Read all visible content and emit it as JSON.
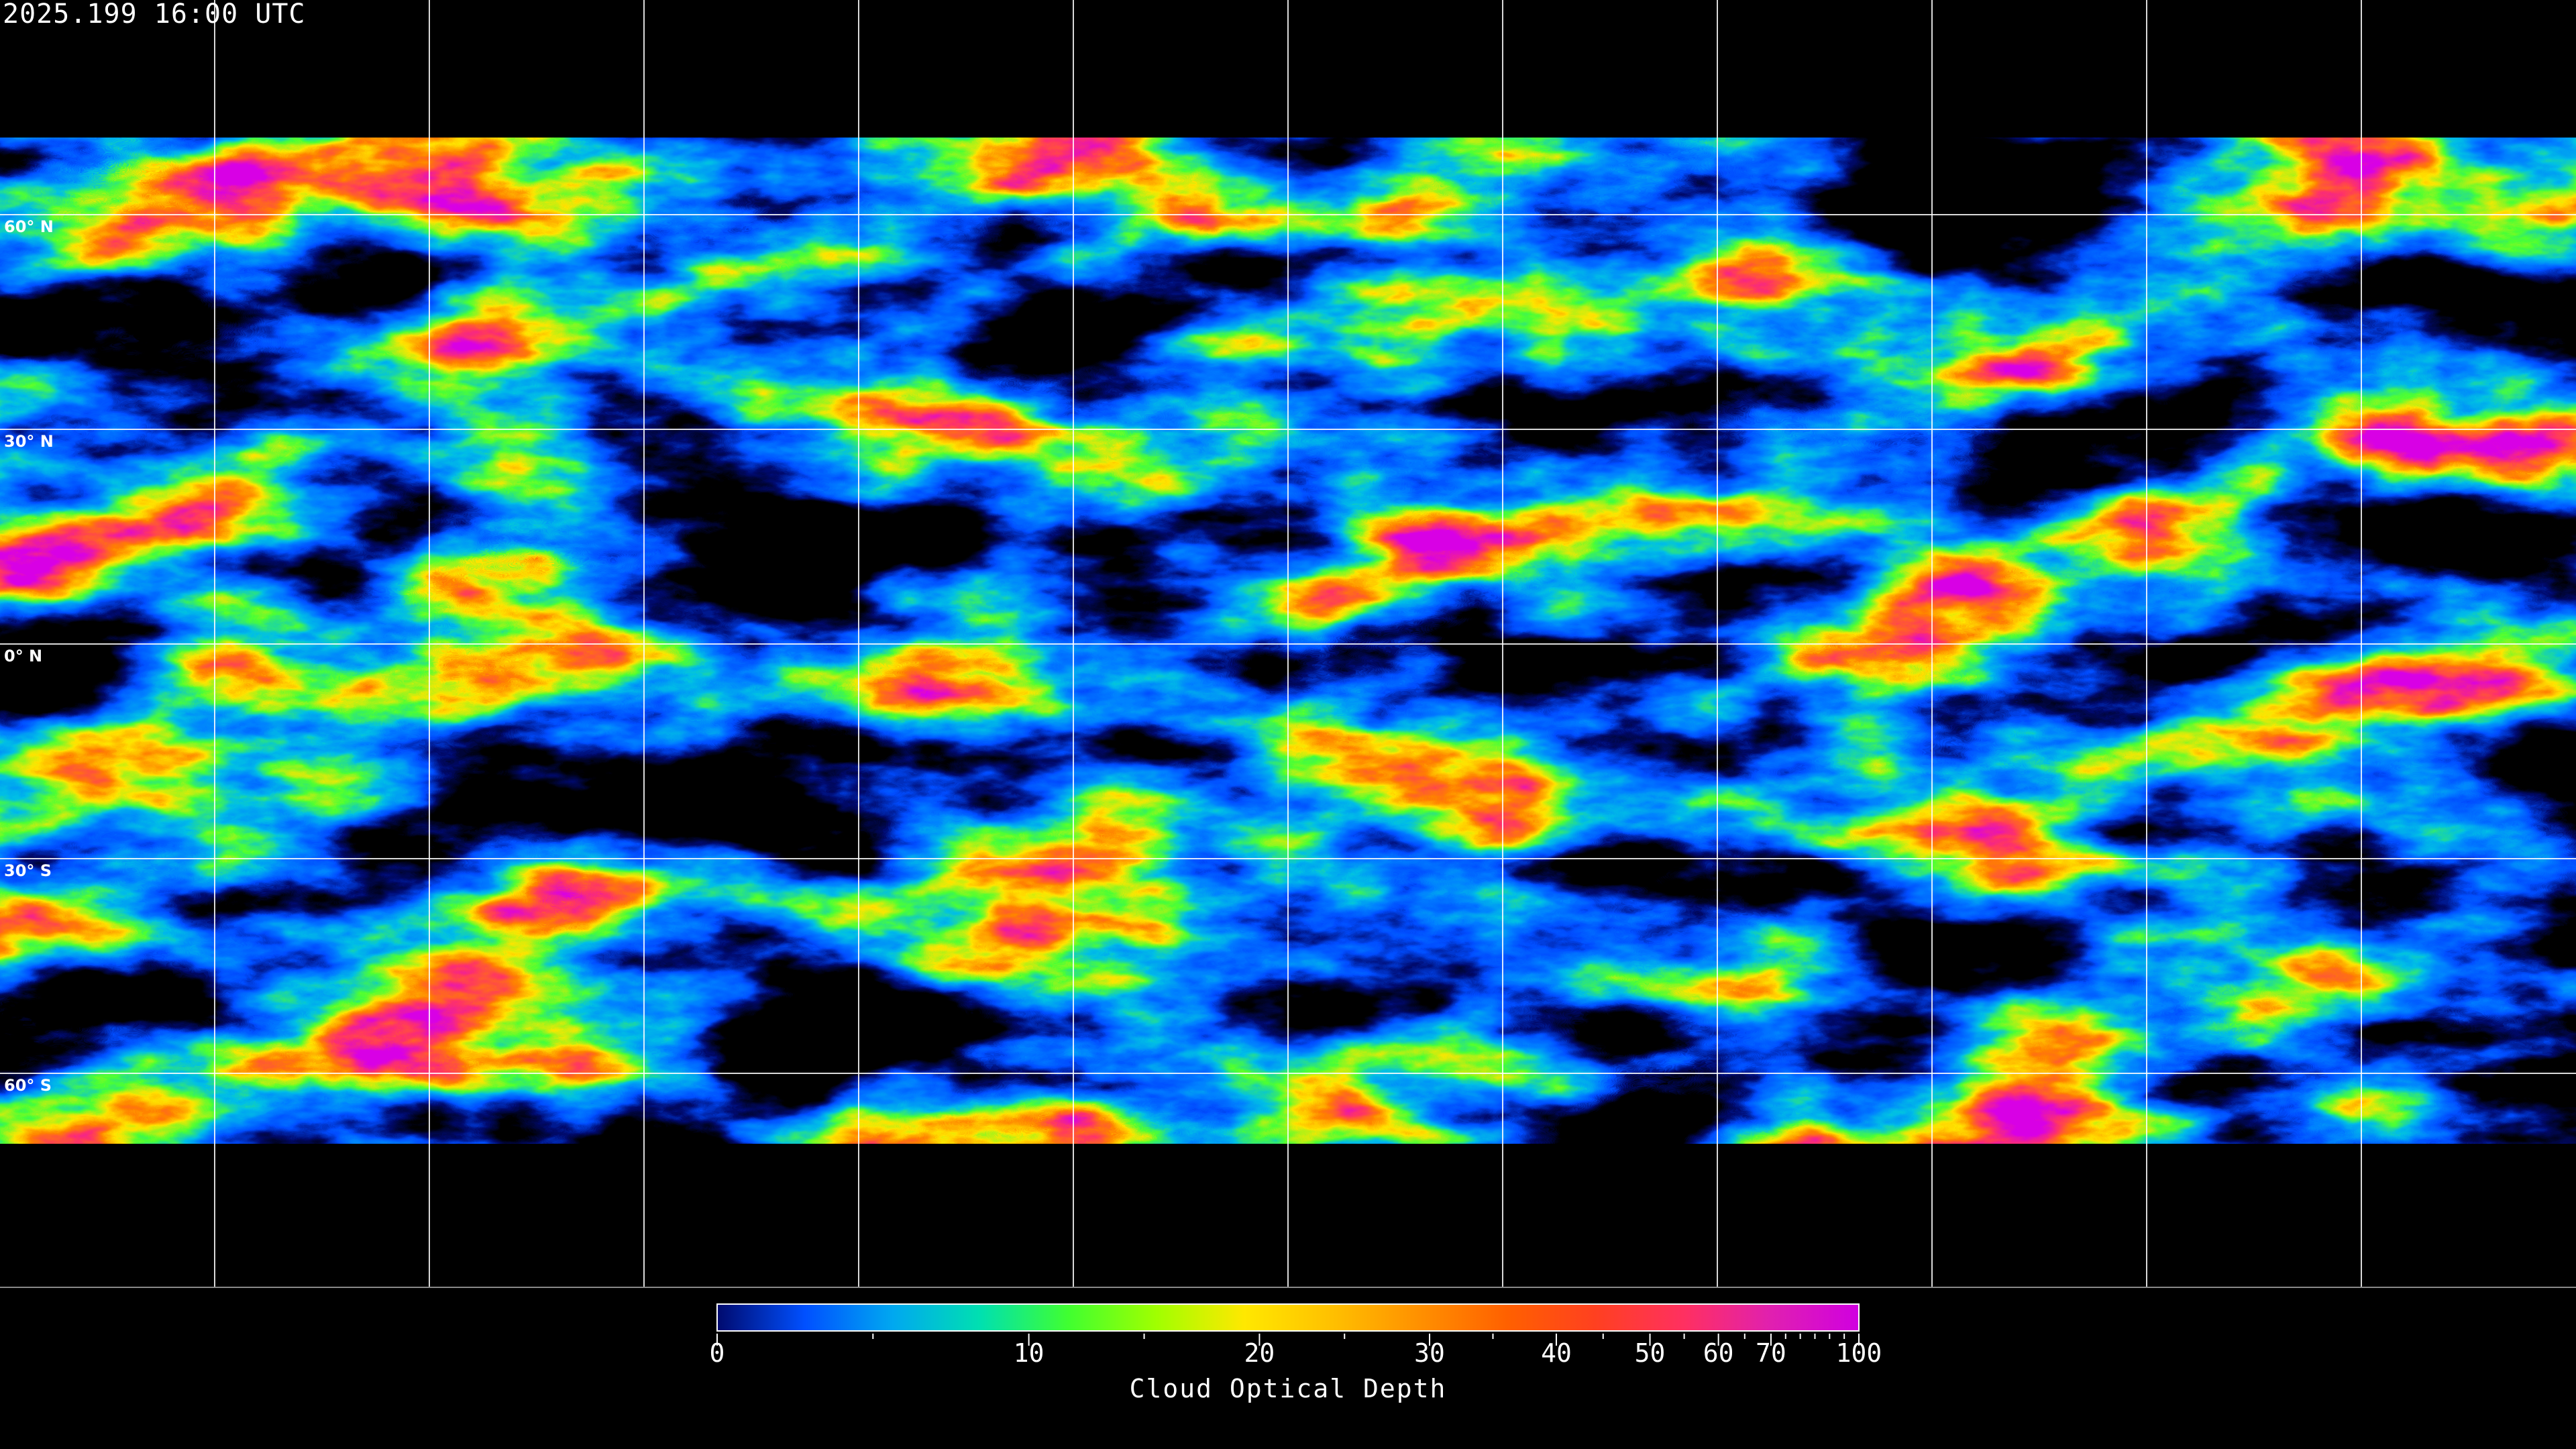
{
  "header": {
    "timestamp": "2025.199 16:00 UTC"
  },
  "map": {
    "projection": "equirectangular",
    "lon_grid": [
      -150,
      -120,
      -90,
      -60,
      -30,
      0,
      30,
      60,
      90,
      120,
      150
    ],
    "lat_grid": [
      {
        "lat": 60,
        "label": "60° N"
      },
      {
        "lat": 30,
        "label": "30° N"
      },
      {
        "lat": 0,
        "label": "0° N"
      },
      {
        "lat": -30,
        "label": "30° S"
      },
      {
        "lat": -60,
        "label": "60° S"
      }
    ],
    "background_color": "#000000",
    "grid_color": "#ffffff",
    "coastline_color": "#ffffff"
  },
  "colorbar": {
    "label": "Cloud Optical Depth",
    "range": [
      0,
      100
    ],
    "major_ticks": [
      {
        "value": 0,
        "label": "0"
      },
      {
        "value": 10,
        "label": "10"
      },
      {
        "value": 20,
        "label": "20"
      },
      {
        "value": 30,
        "label": "30"
      },
      {
        "value": 40,
        "label": "40"
      },
      {
        "value": 50,
        "label": "50"
      },
      {
        "value": 60,
        "label": "60"
      },
      {
        "value": 70,
        "label": "70"
      },
      {
        "value": 100,
        "label": "100"
      }
    ],
    "minor_ticks": [
      5,
      15,
      25,
      35,
      45,
      55,
      65,
      75,
      80,
      85,
      90,
      95
    ],
    "colormap": [
      "#000a6e",
      "#0050ff",
      "#00a8f0",
      "#00e0b0",
      "#40ff30",
      "#a0ff00",
      "#ffe800",
      "#ffc000",
      "#ff9000",
      "#ff6000",
      "#ff4020",
      "#ff3060",
      "#e020b0",
      "#d000e0"
    ]
  }
}
